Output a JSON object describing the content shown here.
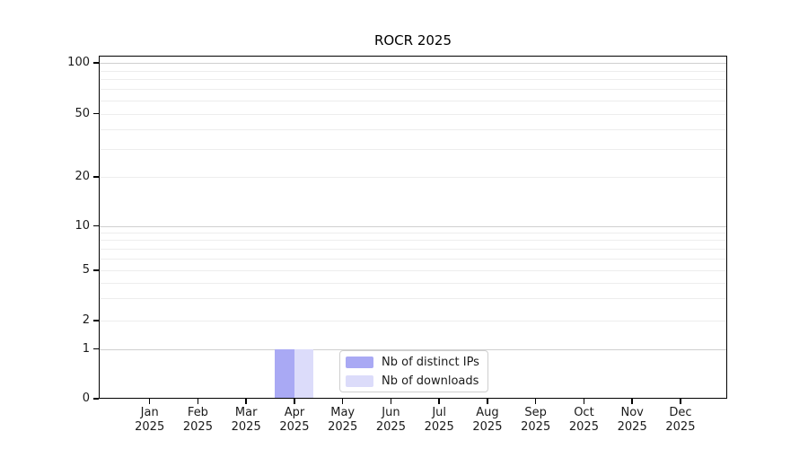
{
  "chart_data": {
    "type": "bar",
    "title": "ROCR 2025",
    "year": "2025",
    "categories": [
      "Jan",
      "Feb",
      "Mar",
      "Apr",
      "May",
      "Jun",
      "Jul",
      "Aug",
      "Sep",
      "Oct",
      "Nov",
      "Dec"
    ],
    "series": [
      {
        "name": "Nb of distinct IPs",
        "color": "#a9a9f4",
        "values": [
          0,
          0,
          0,
          1,
          0,
          0,
          0,
          0,
          0,
          0,
          0,
          0
        ]
      },
      {
        "name": "Nb of downloads",
        "color": "#dcdcfa",
        "values": [
          0,
          0,
          0,
          1,
          0,
          0,
          0,
          0,
          0,
          0,
          0,
          0
        ]
      }
    ],
    "xlabel": "",
    "ylabel": "",
    "yscale": "log-like",
    "y_tick_labels": [
      100,
      50,
      20,
      10,
      5,
      2,
      1,
      0
    ],
    "y_minor_gridline_values": [
      90,
      80,
      70,
      60,
      50,
      40,
      30,
      20,
      9,
      8,
      7,
      6,
      5,
      4,
      3,
      2
    ],
    "y_major_gridline_values": [
      100,
      10,
      1
    ],
    "ylim": [
      0,
      110
    ],
    "grid": true,
    "legend_position": "inside-bottom-center"
  },
  "colors": {
    "background": "#ffffff",
    "axis": "#000000",
    "grid_minor": "#ededed",
    "grid_major": "#d0d0d0",
    "bar_distinct_ips": "#a9a9f4",
    "bar_downloads": "#dcdcfa",
    "legend_border": "#cfcfcf",
    "text": "#1a1a1a"
  }
}
